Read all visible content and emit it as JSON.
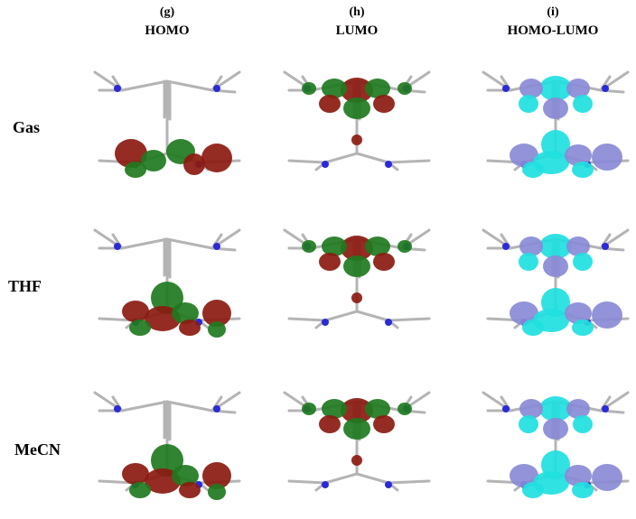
{
  "columns": [
    {
      "letter": "(g)",
      "title": "HOMO",
      "kind": "homo"
    },
    {
      "letter": "(h)",
      "title": "LUMO",
      "kind": "lumo"
    },
    {
      "letter": "(i)",
      "title": "HOMO-LUMO",
      "kind": "diff"
    }
  ],
  "rows": [
    {
      "label": "Gas"
    },
    {
      "label": "THF"
    },
    {
      "label": "MeCN"
    }
  ],
  "colors": {
    "bond": "#b4b4b4",
    "nitrogen": "#2a2ad8",
    "orbital_positive": "#8b1a10",
    "orbital_negative": "#1f7a1f",
    "density_a": "#8a8ad6",
    "density_b": "#1fe0e0"
  }
}
